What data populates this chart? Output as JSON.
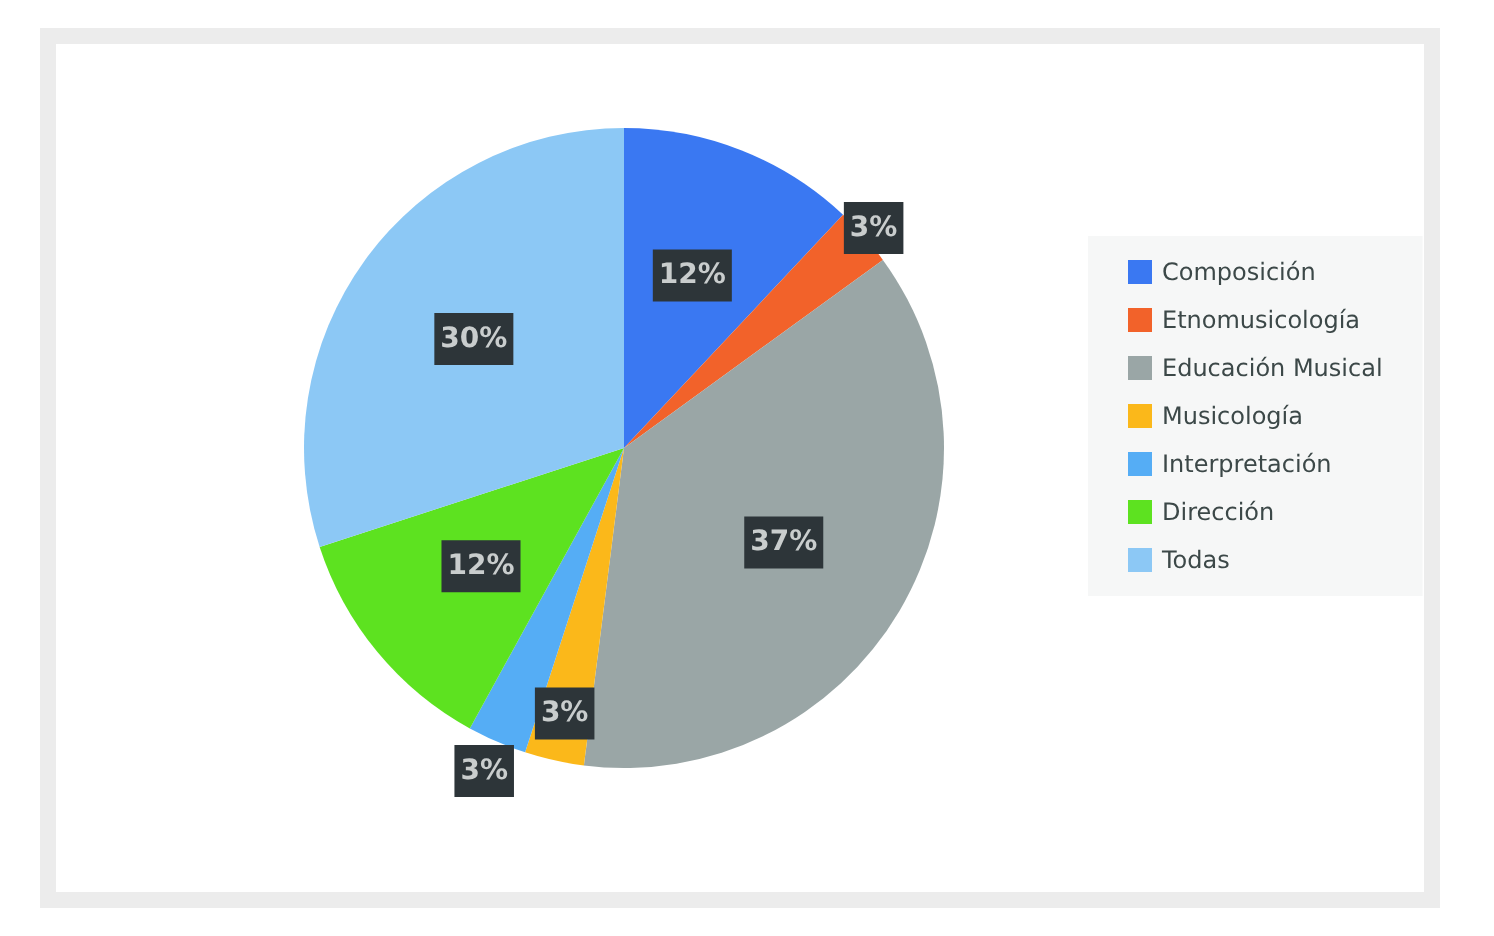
{
  "chart_data": {
    "type": "pie",
    "categories": [
      "Composición",
      "Etnomusicología",
      "Educación Musical",
      "Musicología",
      "Interpretación",
      "Dirección",
      "Todas"
    ],
    "values": [
      12,
      3,
      37,
      3,
      3,
      12,
      30
    ],
    "colors": [
      "#3a78f2",
      "#f2622a",
      "#9aa6a6",
      "#fbb81a",
      "#55adf5",
      "#5de220",
      "#8cc8f5"
    ],
    "value_labels": [
      "12%",
      "3%",
      "37%",
      "3%",
      "3%",
      "12%",
      "30%"
    ],
    "legend": "right"
  }
}
